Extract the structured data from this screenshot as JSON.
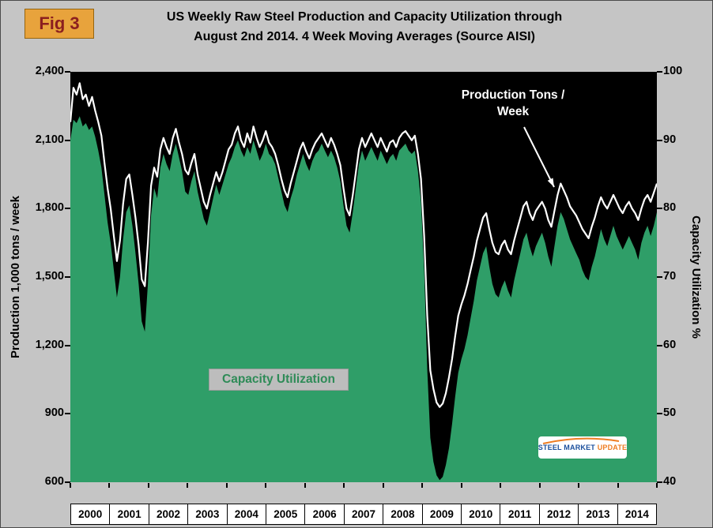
{
  "header": {
    "badge": "Fig 3",
    "title_line1": "US Weekly Raw Steel Production and Capacity Utilization through",
    "title_line2": "August 2nd 2014. 4 Week Moving Averages (Source AISI)"
  },
  "annotations": {
    "production_label_line1": "Production Tons /",
    "production_label_line2": "Week",
    "capacity_label": "Capacity Utilization"
  },
  "logo": {
    "part1": "STEEL",
    "part2": "MARKET",
    "part3": "UPDATE"
  },
  "colors": {
    "frame_gray": "#c5c5c5",
    "plot_background": "#000000",
    "capacity_area_green": "#2f9e68",
    "production_line_white": "#ffffff",
    "badge_orange": "#e8a33c",
    "badge_text_maroon": "#8b1f1f",
    "capacity_label_green": "#2e8b57"
  },
  "chart_data": {
    "type": "area",
    "combo": "green capacity-utilization area (right axis) with white production line (left axis) on black plot",
    "title": "US Weekly Raw Steel Production and Capacity Utilization through August 2nd 2014. 4 Week Moving Averages (Source AISI)",
    "x_years": [
      "2000",
      "2001",
      "2002",
      "2003",
      "2004",
      "2005",
      "2006",
      "2007",
      "2008",
      "2009",
      "2010",
      "2011",
      "2012",
      "2013",
      "2014"
    ],
    "x_start": 2000.0,
    "x_end": 2014.6,
    "sample_interval_weeks": 4,
    "left_axis": {
      "label": "Production 1,000 tons / week",
      "min": 600,
      "max": 2400,
      "tick_labels": [
        "2,400",
        "2,100",
        "1,800",
        "1,500",
        "1,200",
        "900",
        "600"
      ]
    },
    "right_axis": {
      "label": "Capacity Utilization %",
      "min": 40,
      "max": 100,
      "tick_labels": [
        "100",
        "90",
        "80",
        "70",
        "60",
        "50",
        "40"
      ]
    },
    "legend_position": "in-plot text labels",
    "grid": false,
    "series": [
      {
        "name": "Capacity Utilization",
        "type": "area",
        "axis": "right",
        "unit": "%",
        "color": "#2f9e68",
        "values": [
          90,
          93,
          92.5,
          93.5,
          92,
          92.5,
          91.5,
          92,
          90.5,
          88.5,
          86,
          82,
          78,
          75,
          71,
          67,
          70,
          75.5,
          79.5,
          80.5,
          77.5,
          73.5,
          69,
          63.5,
          62,
          69,
          79,
          83,
          81.5,
          86,
          88,
          86.5,
          85.5,
          88,
          89.5,
          87.5,
          85.5,
          82.5,
          82,
          84,
          85.5,
          82.5,
          80.5,
          78.5,
          77.5,
          79.5,
          81.5,
          83.5,
          82,
          83.5,
          85,
          86.5,
          87.5,
          89,
          90,
          88.5,
          87.5,
          89,
          88,
          90,
          88.5,
          87,
          88,
          89.5,
          88,
          87.5,
          86.5,
          84.5,
          82.5,
          80.5,
          79.5,
          81.5,
          83,
          85,
          86.5,
          88,
          86.5,
          85.5,
          87,
          88,
          88.5,
          89.5,
          88.5,
          87.5,
          88.5,
          87.5,
          86,
          84,
          80.5,
          77.5,
          76.5,
          79.5,
          83,
          86.5,
          88.5,
          87,
          88,
          89,
          88,
          87,
          88.5,
          87.5,
          86.5,
          87.5,
          88,
          87,
          88.5,
          89,
          89.5,
          88.5,
          88,
          88.5,
          85.5,
          81,
          71,
          56.5,
          46.5,
          43,
          41,
          40.3,
          40.8,
          42.5,
          45,
          48.5,
          52.5,
          56,
          58,
          59.5,
          61.5,
          64,
          66.5,
          69.5,
          71.5,
          73.5,
          74.5,
          71.5,
          69,
          67.5,
          67,
          68.5,
          69.5,
          68,
          67,
          69.5,
          71.5,
          73.5,
          75.5,
          76.5,
          74.5,
          73,
          74.5,
          75.5,
          76.5,
          75,
          73,
          71.5,
          74.5,
          77.5,
          79.5,
          78.5,
          77,
          75.5,
          74.5,
          73.5,
          72.5,
          71,
          70,
          69.5,
          71.5,
          73,
          75,
          77,
          75.5,
          74.5,
          76,
          77.5,
          76,
          75,
          74,
          75,
          76,
          75,
          74,
          72.5,
          75,
          76.5,
          77.5,
          76,
          77.5,
          79.5
        ]
      },
      {
        "name": "Production Tons / Week",
        "type": "line",
        "axis": "left",
        "unit": "1,000 tons / week",
        "color": "#ffffff",
        "values": [
          2180,
          2330,
          2300,
          2350,
          2280,
          2300,
          2250,
          2290,
          2230,
          2180,
          2120,
          2000,
          1890,
          1800,
          1680,
          1570,
          1660,
          1820,
          1930,
          1950,
          1860,
          1760,
          1640,
          1490,
          1460,
          1650,
          1900,
          1980,
          1940,
          2060,
          2110,
          2070,
          2040,
          2110,
          2150,
          2090,
          2040,
          1970,
          1950,
          2000,
          2040,
          1950,
          1890,
          1830,
          1800,
          1860,
          1910,
          1960,
          1920,
          1960,
          2010,
          2060,
          2080,
          2130,
          2160,
          2100,
          2070,
          2130,
          2090,
          2160,
          2110,
          2070,
          2100,
          2140,
          2090,
          2070,
          2040,
          1990,
          1930,
          1880,
          1850,
          1910,
          1960,
          2010,
          2060,
          2090,
          2050,
          2020,
          2060,
          2090,
          2110,
          2130,
          2100,
          2070,
          2110,
          2080,
          2040,
          1990,
          1890,
          1800,
          1770,
          1860,
          1960,
          2060,
          2110,
          2070,
          2100,
          2130,
          2100,
          2070,
          2110,
          2080,
          2050,
          2090,
          2100,
          2070,
          2110,
          2130,
          2140,
          2120,
          2100,
          2120,
          2040,
          1930,
          1680,
          1330,
          1090,
          1010,
          950,
          930,
          945,
          990,
          1060,
          1140,
          1240,
          1330,
          1380,
          1420,
          1470,
          1530,
          1590,
          1660,
          1710,
          1760,
          1780,
          1710,
          1650,
          1610,
          1600,
          1640,
          1660,
          1620,
          1600,
          1660,
          1710,
          1760,
          1810,
          1830,
          1780,
          1750,
          1790,
          1810,
          1830,
          1800,
          1750,
          1720,
          1790,
          1860,
          1910,
          1880,
          1850,
          1810,
          1790,
          1770,
          1740,
          1710,
          1690,
          1670,
          1720,
          1760,
          1810,
          1850,
          1820,
          1800,
          1830,
          1860,
          1830,
          1800,
          1780,
          1810,
          1830,
          1800,
          1780,
          1750,
          1800,
          1840,
          1860,
          1830,
          1870,
          1910
        ]
      }
    ]
  }
}
